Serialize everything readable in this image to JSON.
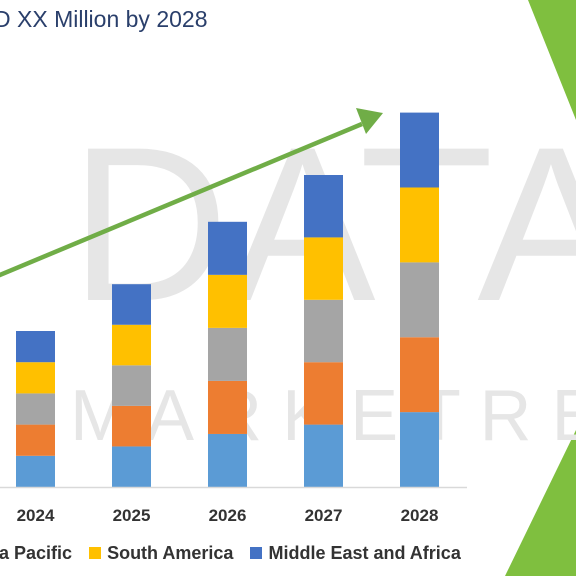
{
  "title": "D XX Million by 2028",
  "watermark": {
    "line1": "DATABR",
    "line2": "M A R K E T R E"
  },
  "chart_data": {
    "type": "bar",
    "stacked": true,
    "categories": [
      "2024",
      "2025",
      "2026",
      "2027",
      "2028"
    ],
    "series": [
      {
        "name": "",
        "color": "#5b9bd5",
        "values": [
          10,
          13,
          17,
          20,
          24
        ]
      },
      {
        "name": "",
        "color": "#ed7d31",
        "values": [
          10,
          13,
          17,
          20,
          24
        ]
      },
      {
        "name": "ia Pacific",
        "color": "#a5a5a5",
        "values": [
          10,
          13,
          17,
          20,
          24
        ]
      },
      {
        "name": "South America",
        "color": "#ffc000",
        "values": [
          10,
          13,
          17,
          20,
          24
        ]
      },
      {
        "name": "Middle East and Africa",
        "color": "#4472c4",
        "values": [
          10,
          13,
          17,
          20,
          24
        ]
      }
    ],
    "trend_arrow": {
      "color": "#70ad47"
    },
    "grid": false
  },
  "legend": [
    {
      "label": "ia Pacific",
      "color": "#a5a5a5"
    },
    {
      "label": "South America",
      "color": "#ffc000"
    },
    {
      "label": "Middle East and Africa",
      "color": "#4472c4"
    }
  ]
}
